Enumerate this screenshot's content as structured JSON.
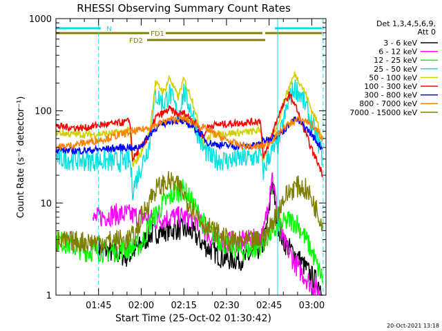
{
  "chart_data": {
    "type": "line",
    "title": "RHESSI Observing Summary Count Rates",
    "xlabel": "Start Time (25-Oct-02 01:30:42)",
    "ylabel": "Count Rate (s⁻¹ detector⁻¹)",
    "yscale": "log",
    "ylim": [
      1,
      1000
    ],
    "xlim_minutes": [
      0,
      95
    ],
    "x_ticks": [
      {
        "label": "01:45",
        "minute": 15
      },
      {
        "label": "02:00",
        "minute": 30
      },
      {
        "label": "02:15",
        "minute": 45
      },
      {
        "label": "02:30",
        "minute": 60
      },
      {
        "label": "02:45",
        "minute": 75
      },
      {
        "label": "03:00",
        "minute": 90
      }
    ],
    "y_ticks": [
      {
        "label": "1",
        "value": 1
      },
      {
        "label": "10",
        "value": 10
      },
      {
        "label": "100",
        "value": 100
      },
      {
        "label": "1000",
        "value": 1000
      }
    ],
    "legend_header": [
      "Det 1,3,4,5,6,9,",
      "Att 0"
    ],
    "legend_position": "right",
    "footer_date": "20-Oct-2021 13:18",
    "flags": [
      {
        "label": "N",
        "color": "#00e0e0"
      },
      {
        "label": "FD1",
        "color": "#7f7f00"
      },
      {
        "label": "FD2",
        "color": "#7f7f00"
      }
    ],
    "event_lines_minutes": [
      15,
      78,
      94
    ],
    "series": [
      {
        "name": "3 - 6 keV",
        "color": "#000000",
        "x": [
          15,
          25,
          30,
          33,
          38,
          43,
          48,
          52,
          58,
          62,
          67,
          70,
          73,
          75,
          76,
          78,
          80,
          85,
          90,
          94
        ],
        "values": [
          3.2,
          2.6,
          3.5,
          4.5,
          5,
          5.2,
          4.8,
          3.5,
          2.6,
          2.4,
          2.5,
          2.9,
          3.5,
          8,
          18,
          6,
          3.8,
          2.6,
          1.6,
          1.2
        ]
      },
      {
        "name": "6 - 12 keV",
        "color": "#ff00ff",
        "x": [
          13,
          15,
          20,
          25,
          30,
          35,
          40,
          45,
          50,
          55,
          60,
          65,
          70,
          73,
          75,
          76,
          78,
          80,
          85,
          90,
          94
        ],
        "values": [
          6.5,
          7,
          7.5,
          7.5,
          7,
          6.5,
          7,
          7,
          6.5,
          4,
          3.8,
          3.8,
          4,
          4.5,
          12,
          22,
          7,
          3.8,
          2,
          1.3,
          1
        ]
      },
      {
        "name": "12 - 25 keV",
        "color": "#00ff00",
        "x": [
          0,
          5,
          10,
          15,
          20,
          25,
          30,
          33,
          38,
          42,
          45,
          48,
          52,
          55,
          60,
          65,
          70,
          73,
          75,
          77,
          80,
          82,
          85,
          88,
          90,
          92,
          94
        ],
        "values": [
          4,
          3.5,
          3,
          3,
          3,
          3.2,
          3.5,
          6,
          10,
          13,
          14,
          10,
          6,
          4.5,
          3.5,
          3,
          3.2,
          3.8,
          4.5,
          5,
          6,
          6.5,
          6,
          4,
          3,
          2,
          1.5
        ]
      },
      {
        "name": "25 - 50 keV",
        "color": "#00e0e0",
        "x": [
          0,
          5,
          10,
          15,
          20,
          25,
          26,
          27,
          30,
          33,
          35,
          38,
          40,
          43,
          45,
          48,
          50,
          52,
          53,
          55,
          60,
          65,
          70,
          72,
          73,
          75,
          78,
          80,
          82,
          84,
          86,
          88,
          90,
          92,
          94
        ],
        "values": [
          31,
          30,
          29,
          29,
          28,
          28.5,
          29,
          14,
          25,
          45,
          150,
          120,
          155,
          90,
          160,
          95,
          55,
          38,
          36,
          30,
          29,
          30,
          31,
          33,
          22,
          33,
          42,
          75,
          130,
          180,
          150,
          110,
          70,
          50,
          30
        ]
      },
      {
        "name": "50 - 100 keV",
        "color": "#d0d000",
        "x": [
          0,
          5,
          10,
          15,
          20,
          25,
          26,
          27,
          30,
          33,
          35,
          38,
          40,
          43,
          45,
          48,
          50,
          52,
          53,
          55,
          60,
          65,
          70,
          72,
          73,
          75,
          78,
          80,
          82,
          84,
          86,
          88,
          90,
          92,
          94
        ],
        "values": [
          58,
          56,
          55,
          56,
          57,
          60,
          62,
          25,
          35,
          60,
          200,
          160,
          230,
          140,
          220,
          130,
          75,
          45,
          48,
          55,
          57,
          58,
          60,
          62,
          30,
          45,
          70,
          120,
          180,
          250,
          200,
          150,
          100,
          75,
          50
        ]
      },
      {
        "name": "100 - 300 keV",
        "color": "#ff0000",
        "x": [
          0,
          5,
          10,
          15,
          20,
          25,
          26,
          27,
          30,
          33,
          35,
          38,
          40,
          43,
          45,
          48,
          50,
          52,
          53,
          55,
          60,
          65,
          70,
          72,
          73,
          75,
          78,
          80,
          82,
          84,
          86,
          88,
          90,
          92,
          94
        ],
        "values": [
          68,
          66,
          65,
          70,
          72,
          76,
          78,
          30,
          40,
          55,
          85,
          95,
          105,
          90,
          95,
          80,
          70,
          50,
          65,
          70,
          72,
          74,
          76,
          78,
          30,
          45,
          85,
          115,
          150,
          120,
          80,
          55,
          38,
          28,
          20
        ]
      },
      {
        "name": "300 - 800 keV",
        "color": "#0000ff",
        "x": [
          0,
          5,
          10,
          15,
          20,
          25,
          26,
          27,
          30,
          33,
          35,
          38,
          40,
          43,
          45,
          48,
          50,
          52,
          53,
          55,
          60,
          65,
          70,
          72,
          73,
          75,
          78,
          80,
          82,
          84,
          86,
          88,
          90,
          92,
          94
        ],
        "values": [
          38,
          37,
          37,
          38,
          39,
          40,
          41,
          38,
          42,
          55,
          65,
          72,
          78,
          78,
          75,
          68,
          60,
          52,
          46,
          44,
          42,
          41,
          42,
          44,
          47,
          50,
          55,
          60,
          72,
          80,
          75,
          65,
          55,
          45,
          38
        ]
      },
      {
        "name": "800 - 7000 keV",
        "color": "#ff8000",
        "x": [
          0,
          5,
          10,
          15,
          20,
          25,
          30,
          35,
          40,
          45,
          50,
          55,
          60,
          65,
          70,
          72,
          75,
          78,
          80,
          82,
          85,
          88,
          90,
          92,
          94
        ],
        "values": [
          40,
          42,
          45,
          48,
          52,
          58,
          62,
          70,
          80,
          82,
          70,
          58,
          48,
          42,
          40,
          41,
          45,
          55,
          65,
          72,
          80,
          78,
          70,
          60,
          48
        ]
      },
      {
        "name": "7000 - 15000 keV",
        "color": "#7f7f00",
        "x": [
          0,
          5,
          10,
          15,
          20,
          25,
          28,
          30,
          33,
          35,
          38,
          40,
          42,
          44,
          46,
          48,
          50,
          52,
          55,
          58,
          60,
          62,
          65,
          68,
          70,
          72,
          74,
          76,
          78,
          80,
          82,
          84,
          86,
          88,
          90,
          92,
          94
        ],
        "values": [
          3.8,
          3.8,
          3.8,
          3.8,
          3.9,
          4,
          4.5,
          7,
          11,
          14,
          16,
          17,
          16,
          14,
          11,
          9,
          7,
          6,
          5,
          4.5,
          4,
          3.8,
          3.8,
          3.8,
          3.8,
          4,
          4.5,
          6,
          8,
          11,
          13,
          15,
          15,
          14,
          11,
          8,
          6
        ]
      }
    ]
  }
}
